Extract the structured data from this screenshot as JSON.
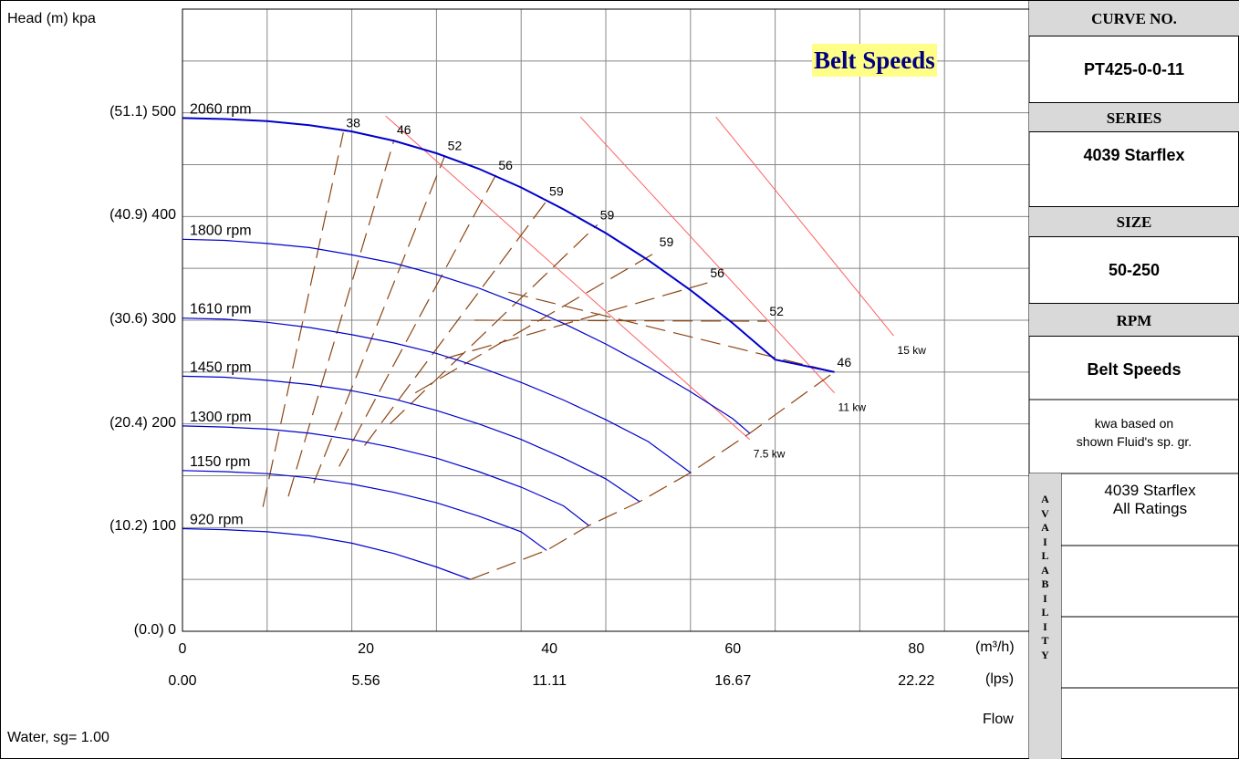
{
  "chart_data": {
    "type": "line",
    "ylabel": "Head (m)  kpa",
    "y_ticks": [
      "(0.0) 0",
      "(10.2) 100",
      "(20.4) 200",
      "(30.6) 300",
      "(40.9) 400",
      "(51.1) 500"
    ],
    "ylim": [
      0,
      600
    ],
    "xlim": [
      0,
      100
    ],
    "x_ticks_m3h": [
      "0",
      "20",
      "40",
      "60",
      "80"
    ],
    "x_unit_m3h": "(m³/h)",
    "x_ticks_lps": [
      "0.00",
      "5.56",
      "11.11",
      "16.67",
      "22.22"
    ],
    "x_unit_lps": "(lps)",
    "xlabel": "Flow",
    "fluid_note": "Water, sg= 1.00",
    "annotation_title": "Belt Speeds",
    "grid": true,
    "speed_curves": [
      {
        "name": "2060 rpm",
        "x": [
          0,
          5,
          10,
          15,
          20,
          25,
          30,
          35,
          40,
          45,
          50,
          55,
          60,
          65,
          70,
          77
        ],
        "y": [
          495,
          494,
          492,
          488,
          482,
          473,
          461,
          446,
          428,
          407,
          384,
          358,
          329,
          297,
          262,
          250
        ]
      },
      {
        "name": "1800 rpm",
        "x": [
          0,
          5,
          10,
          15,
          20,
          25,
          30,
          35,
          40,
          45,
          50,
          55,
          60,
          65,
          67
        ],
        "y": [
          378,
          377,
          374,
          370,
          363,
          355,
          344,
          331,
          315,
          297,
          277,
          255,
          231,
          205,
          191
        ]
      },
      {
        "name": "1610 rpm",
        "x": [
          0,
          5,
          10,
          15,
          20,
          25,
          30,
          35,
          40,
          45,
          50,
          55,
          60
        ],
        "y": [
          302,
          301,
          298,
          293,
          286,
          278,
          268,
          255,
          240,
          223,
          204,
          183,
          153
        ]
      },
      {
        "name": "1450 rpm",
        "x": [
          0,
          5,
          10,
          15,
          20,
          25,
          30,
          35,
          40,
          45,
          50,
          54
        ],
        "y": [
          246,
          245,
          242,
          238,
          232,
          224,
          213,
          200,
          185,
          167,
          147,
          125
        ]
      },
      {
        "name": "1300 rpm",
        "x": [
          0,
          5,
          10,
          15,
          20,
          25,
          30,
          35,
          40,
          45,
          48
        ],
        "y": [
          198,
          197,
          195,
          191,
          185,
          177,
          167,
          154,
          139,
          121,
          102
        ]
      },
      {
        "name": "1150 rpm",
        "x": [
          0,
          5,
          10,
          15,
          20,
          25,
          30,
          35,
          40,
          43
        ],
        "y": [
          155,
          154,
          152,
          148,
          142,
          134,
          124,
          111,
          96,
          78
        ]
      },
      {
        "name": "920 rpm",
        "x": [
          0,
          5,
          10,
          15,
          20,
          25,
          30,
          34
        ],
        "y": [
          99,
          98,
          96,
          92,
          85,
          75,
          62,
          50
        ]
      }
    ],
    "efficiency_lines": [
      {
        "name": "38",
        "x": [
          9.5,
          19
        ],
        "y": [
          120,
          481
        ]
      },
      {
        "name": "46",
        "x": [
          12.5,
          25
        ],
        "y": [
          130,
          474
        ]
      },
      {
        "name": "52",
        "x": [
          15.5,
          31
        ],
        "y": [
          143,
          459
        ]
      },
      {
        "name": "56",
        "x": [
          18.5,
          37
        ],
        "y": [
          159,
          440
        ]
      },
      {
        "name": "59",
        "x": [
          21.5,
          43
        ],
        "y": [
          179,
          415
        ]
      },
      {
        "name": "59",
        "x": [
          24.5,
          49
        ],
        "y": [
          200,
          392
        ]
      },
      {
        "name": "59",
        "x": [
          27.5,
          56
        ],
        "y": [
          230,
          366
        ]
      },
      {
        "name": "56",
        "x": [
          31,
          62
        ],
        "y": [
          263,
          336
        ]
      },
      {
        "name": "52",
        "x": [
          34.5,
          69
        ],
        "y": [
          300,
          299
        ]
      },
      {
        "name": "46",
        "x": [
          38.5,
          77
        ],
        "y": [
          327,
          250
        ]
      }
    ],
    "efficiency_boundary": {
      "x": [
        34,
        43,
        48,
        54,
        60,
        67,
        77
      ],
      "y": [
        50,
        78,
        102,
        125,
        153,
        191,
        250
      ]
    },
    "power_lines": [
      {
        "name": "7.5 kw",
        "x": [
          24,
          67
        ],
        "y": [
          497,
          185
        ]
      },
      {
        "name": "11 kw",
        "x": [
          47,
          77
        ],
        "y": [
          496,
          230
        ]
      },
      {
        "name": "15 kw",
        "x": [
          63,
          84
        ],
        "y": [
          496,
          285
        ]
      }
    ],
    "colors": {
      "speed": "#0000cc",
      "efficiency": "#8b4513",
      "power": "#ff6060",
      "highlight": "#ffff88",
      "panel_header": "#d9d9d9"
    }
  },
  "panel": {
    "curve_no_label": "CURVE NO.",
    "curve_no_value": "PT425-0-0-11",
    "series_label": "SERIES",
    "series_value": "4039 Starflex",
    "size_label": "SIZE",
    "size_value": "50-250",
    "rpm_label": "RPM",
    "rpm_value": "Belt Speeds",
    "kwa_note_line1": "kwa based on",
    "kwa_note_line2": "shown Fluid's sp. gr.",
    "availability_letters": [
      "A",
      "V",
      "A",
      "I",
      "L",
      "A",
      "B",
      "I",
      "L",
      "I",
      "T",
      "Y"
    ],
    "availability_line1": "4039 Starflex",
    "availability_line2": "All Ratings"
  }
}
